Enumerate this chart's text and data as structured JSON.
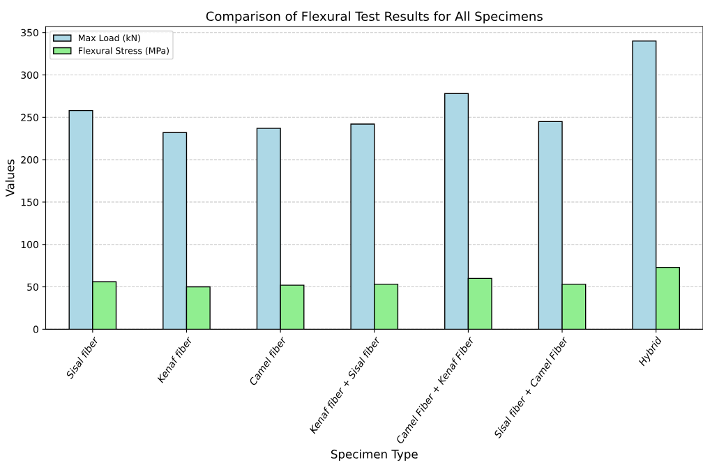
{
  "chart_data": {
    "type": "bar",
    "title": "Comparison of Flexural Test Results for All Specimens",
    "xlabel": "Specimen Type",
    "ylabel": "Values",
    "categories": [
      "Sisal fiber",
      "Kenaf fiber",
      "Camel fiber",
      "Kenaf fiber + Sisal fiber",
      "Camel Fiber + Kenaf Fiber",
      "Sisal fiber + Camel Fiber",
      "Hybrid"
    ],
    "series": [
      {
        "name": "Max Load (kN)",
        "color": "#add8e6",
        "values": [
          258,
          232,
          237,
          242,
          278,
          245,
          340
        ]
      },
      {
        "name": "Flexural Stress (MPa)",
        "color": "#90ee90",
        "values": [
          56,
          50,
          52,
          53,
          60,
          53,
          73
        ]
      }
    ],
    "ylim": [
      0,
      357
    ],
    "yticks": [
      0,
      50,
      100,
      150,
      200,
      250,
      300,
      350
    ],
    "grid": "y",
    "legend": "top left"
  }
}
